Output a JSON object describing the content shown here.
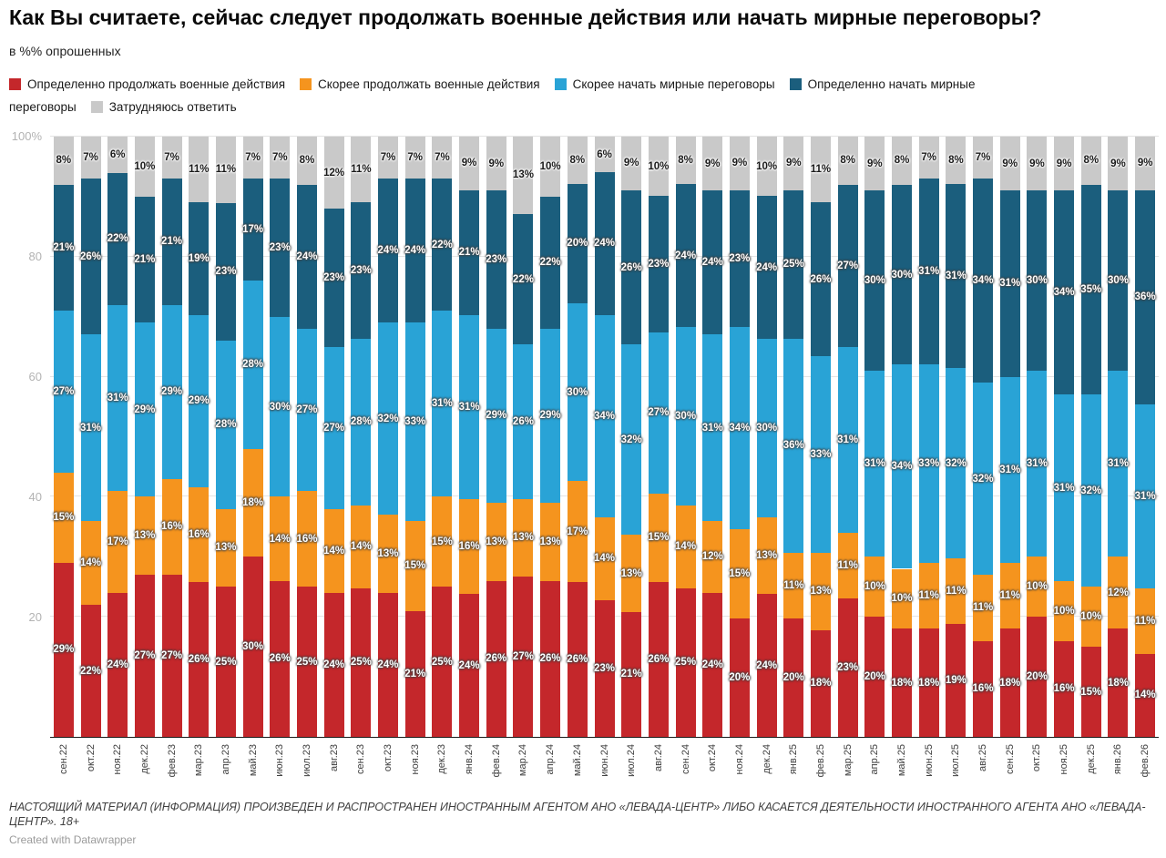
{
  "header": {
    "title": "Как Вы считаете, сейчас следует продолжать военные действия или начать мирные переговоры?",
    "subtitle": "в %% опрошенных"
  },
  "legend": [
    {
      "label": "Определенно продолжать военные действия",
      "color": "#c4272b"
    },
    {
      "label": "Скорее продолжать военные действия",
      "color": "#f5941e"
    },
    {
      "label": "Скорее начать мирные переговоры",
      "color": "#29a3d6"
    },
    {
      "label": "Определенно начать мирные переговоры",
      "color": "#1b5e7d"
    },
    {
      "label": "Затрудняюсь ответить",
      "color": "#c9c9c9"
    }
  ],
  "chart_data": {
    "type": "bar",
    "stacked": true,
    "unit": "%",
    "title": "Как Вы считаете, сейчас следует продолжать военные действия или начать мирные переговоры?",
    "subtitle": "в %% опрошенных",
    "xlabel": "",
    "ylabel": "",
    "ylim": [
      0,
      100
    ],
    "grid": true,
    "legend_position": "top",
    "yticks": [
      {
        "label": "100%",
        "value": 100
      },
      {
        "label": "80",
        "value": 80
      },
      {
        "label": "60",
        "value": 60
      },
      {
        "label": "40",
        "value": 40
      },
      {
        "label": "20",
        "value": 20
      }
    ],
    "categories": [
      "сен.22",
      "окт.22",
      "ноя.22",
      "дек.22",
      "фев.23",
      "мар.23",
      "апр.23",
      "май.23",
      "июн.23",
      "июл.23",
      "авг.23",
      "сен.23",
      "окт.23",
      "ноя.23",
      "дек.23",
      "янв.24",
      "фев.24",
      "мар.24",
      "апр.24",
      "май.24",
      "июн.24",
      "июл.24",
      "авг.24",
      "сен.24",
      "окт.24",
      "ноя.24",
      "дек.24",
      "янв.25",
      "фев.25",
      "мар.25",
      "апр.25",
      "май.25",
      "июн.25",
      "июл.25",
      "авг.25",
      "сен.25",
      "окт.25",
      "ноя.25",
      "дек.25",
      "янв.26",
      "фев.26"
    ],
    "series": [
      {
        "name": "Определенно продолжать военные действия",
        "color": "#c4272b",
        "values": [
          29,
          22,
          24,
          27,
          27,
          26,
          25,
          30,
          26,
          25,
          24,
          25,
          24,
          21,
          25,
          24,
          26,
          27,
          26,
          26,
          23,
          21,
          26,
          25,
          24,
          20,
          24,
          20,
          18,
          23,
          20,
          18,
          18,
          19,
          16,
          18,
          20,
          16,
          15,
          18,
          14
        ]
      },
      {
        "name": "Скорее продолжать военные действия",
        "color": "#f5941e",
        "values": [
          15,
          14,
          17,
          13,
          16,
          16,
          13,
          18,
          14,
          16,
          14,
          14,
          13,
          15,
          15,
          16,
          13,
          13,
          13,
          17,
          14,
          13,
          15,
          14,
          12,
          15,
          13,
          11,
          13,
          11,
          10,
          10,
          11,
          11,
          11,
          11,
          10,
          10,
          10,
          12,
          11
        ]
      },
      {
        "name": "Скорее начать мирные переговоры",
        "color": "#29a3d6",
        "values": [
          27,
          31,
          31,
          29,
          29,
          29,
          28,
          28,
          30,
          27,
          27,
          28,
          32,
          33,
          31,
          31,
          29,
          26,
          29,
          30,
          34,
          32,
          27,
          30,
          31,
          34,
          30,
          36,
          33,
          31,
          31,
          34,
          33,
          32,
          32,
          31,
          31,
          31,
          32,
          31,
          31
        ]
      },
      {
        "name": "Определенно начать мирные переговоры",
        "color": "#1b5e7d",
        "values": [
          21,
          26,
          22,
          21,
          21,
          19,
          23,
          17,
          23,
          24,
          23,
          23,
          24,
          24,
          22,
          21,
          23,
          22,
          22,
          20,
          24,
          26,
          23,
          24,
          24,
          23,
          24,
          25,
          26,
          27,
          30,
          30,
          31,
          31,
          34,
          31,
          30,
          34,
          35,
          30,
          36
        ]
      },
      {
        "name": "Затрудняюсь ответить",
        "color": "#c9c9c9",
        "values": [
          8,
          7,
          6,
          10,
          7,
          11,
          11,
          7,
          7,
          8,
          12,
          11,
          7,
          7,
          7,
          9,
          9,
          13,
          10,
          8,
          6,
          9,
          10,
          8,
          9,
          9,
          10,
          9,
          11,
          8,
          9,
          8,
          7,
          8,
          7,
          9,
          9,
          9,
          8,
          9,
          9
        ]
      }
    ]
  },
  "footer": {
    "disclaimer": "НАСТОЯЩИЙ МАТЕРИАЛ (ИНФОРМАЦИЯ) ПРОИЗВЕДЕН И РАСПРОСТРАНЕН ИНОСТРАННЫМ АГЕНТОМ АНО «ЛЕВАДА-ЦЕНТР» ЛИБО КАСАЕТСЯ ДЕЯТЕЛЬНОСТИ ИНОСТРАННОГО АГЕНТА АНО «ЛЕВАДА-ЦЕНТР». 18+",
    "credit": "Created with Datawrapper"
  }
}
